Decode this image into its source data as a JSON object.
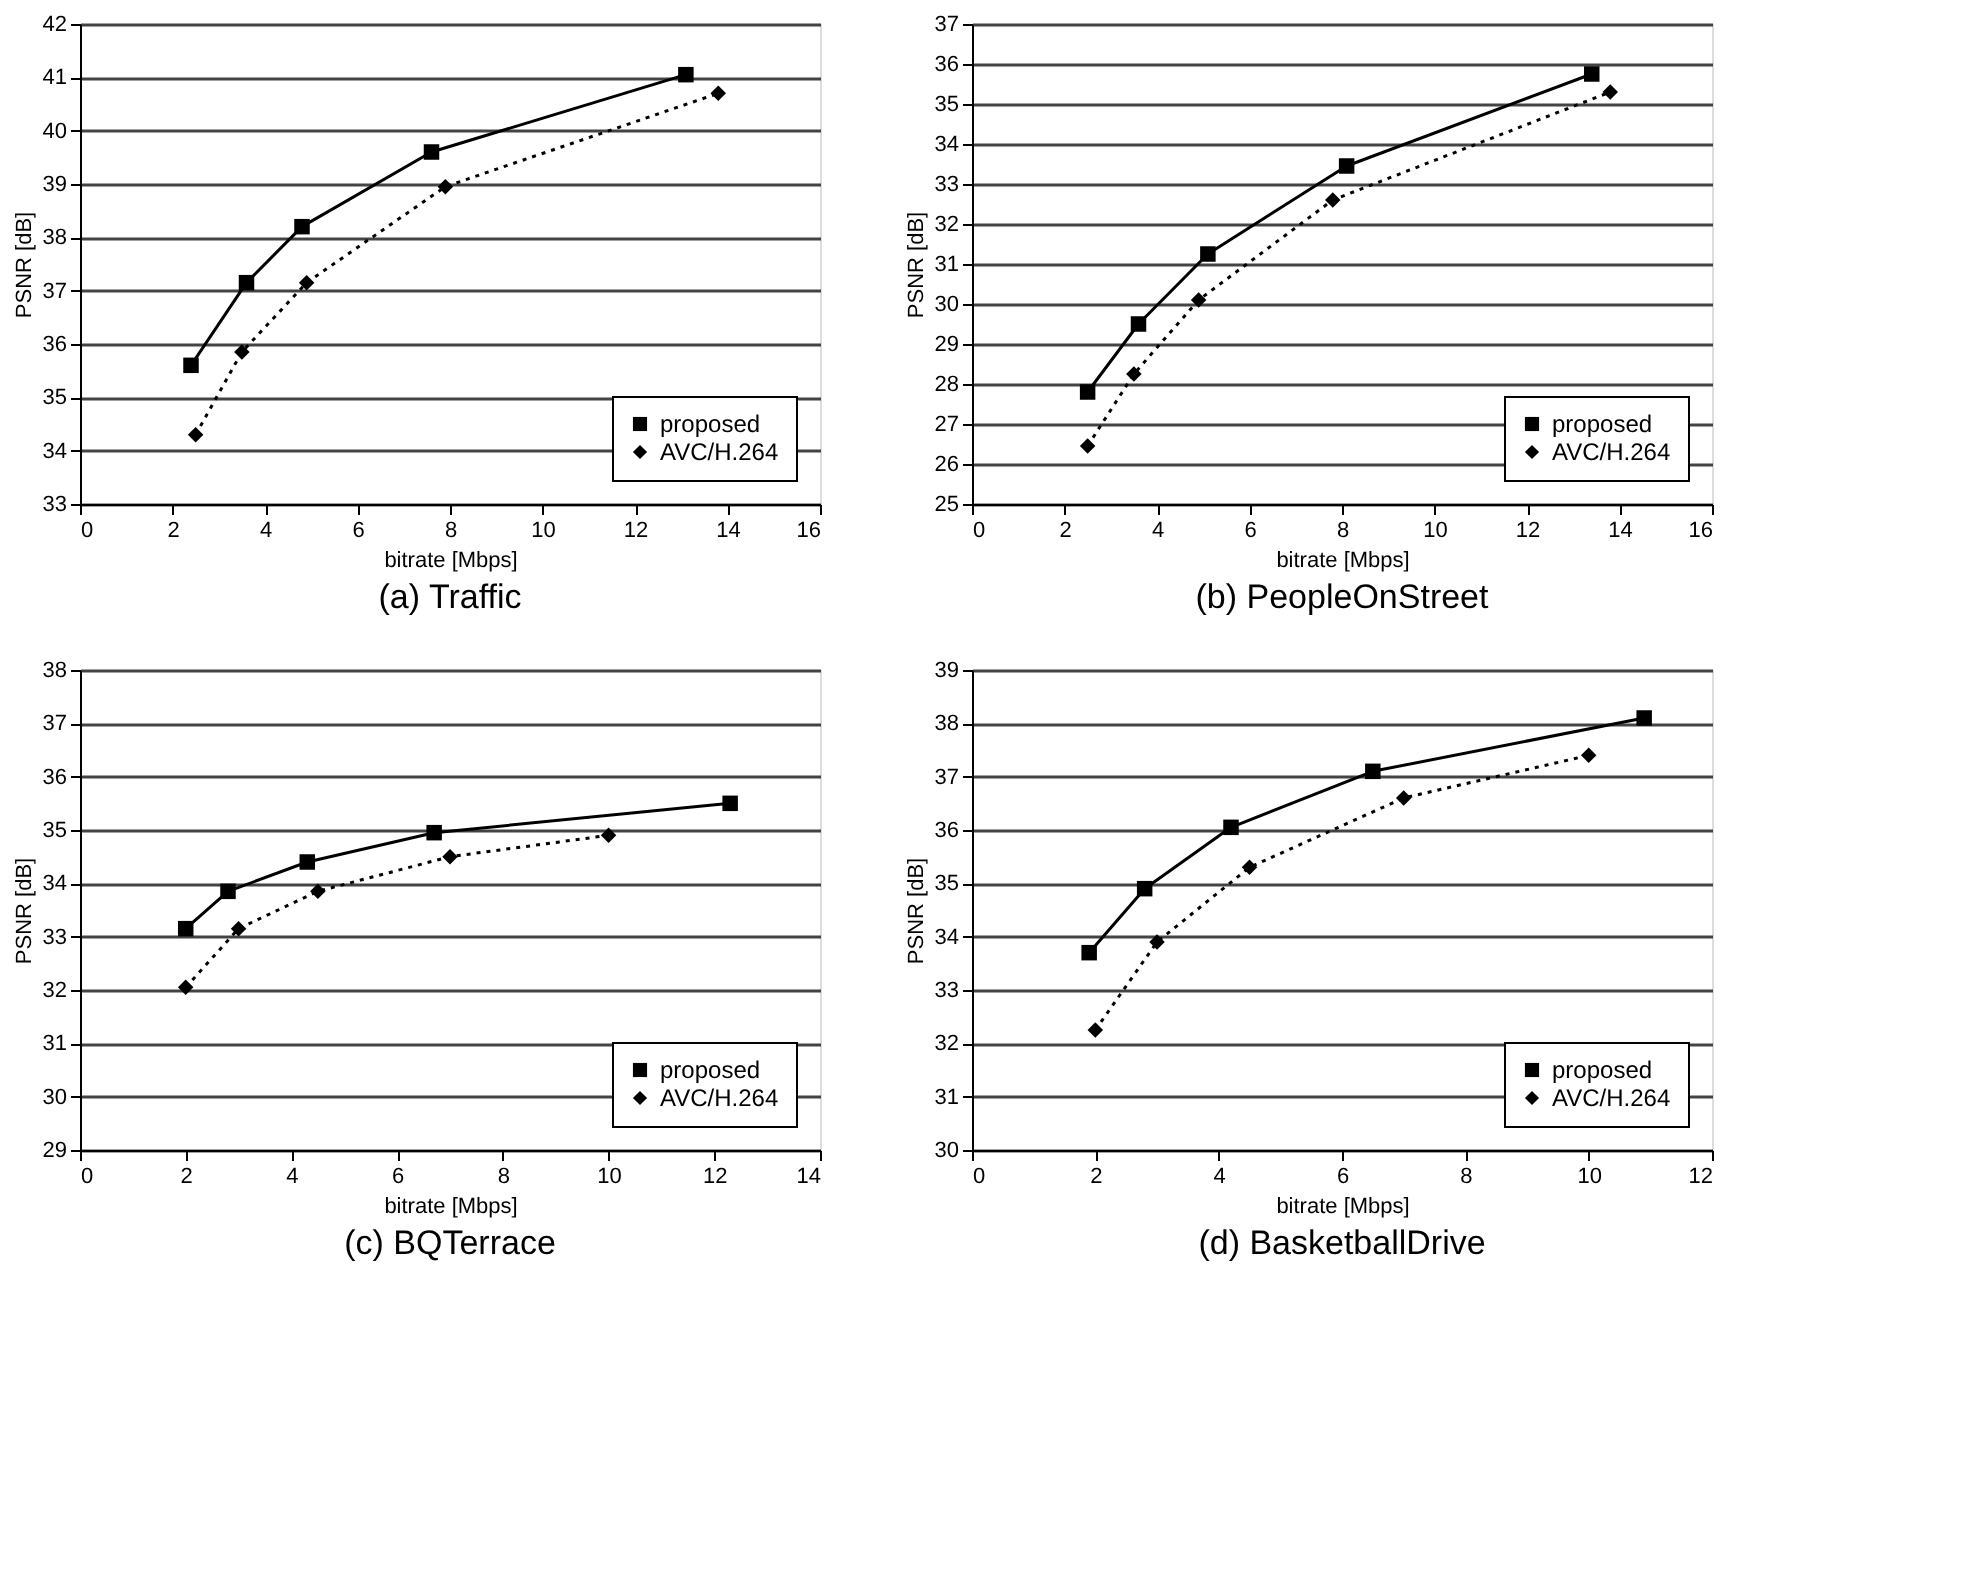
{
  "chart_data": [
    {
      "type": "line",
      "title": "(a) Traffic",
      "xlabel": "bitrate [Mbps]",
      "ylabel": "PSNR [dB]",
      "xlim": [
        0,
        16
      ],
      "xticks": [
        0,
        2,
        4,
        6,
        8,
        10,
        12,
        14,
        16
      ],
      "ylim": [
        33,
        42
      ],
      "yticks": [
        33,
        34,
        35,
        36,
        37,
        38,
        39,
        40,
        41,
        42
      ],
      "grid": "y",
      "legend": "bottom right",
      "series": [
        {
          "name": "proposed",
          "color": "#000000",
          "marker": "square",
          "line_style": "solid",
          "x": [
            2.4,
            3.6,
            4.8,
            7.6,
            13.1
          ],
          "values": [
            35.6,
            37.15,
            38.2,
            39.6,
            41.05
          ]
        },
        {
          "name": "AVC/H.264",
          "color": "#000000",
          "marker": "diamond",
          "line_style": "dotted",
          "x": [
            2.5,
            3.5,
            4.9,
            7.9,
            13.8
          ],
          "values": [
            34.3,
            35.85,
            37.15,
            38.95,
            40.7
          ]
        }
      ]
    },
    {
      "type": "line",
      "title": "(b) PeopleOnStreet",
      "xlabel": "bitrate [Mbps]",
      "ylabel": "PSNR [dB]",
      "xlim": [
        0,
        16
      ],
      "xticks": [
        0,
        2,
        4,
        6,
        8,
        10,
        12,
        14,
        16
      ],
      "ylim": [
        25,
        37
      ],
      "yticks": [
        25,
        26,
        27,
        28,
        29,
        30,
        31,
        32,
        33,
        34,
        35,
        36,
        37
      ],
      "grid": "y",
      "legend": "bottom right",
      "series": [
        {
          "name": "proposed",
          "color": "#000000",
          "marker": "square",
          "line_style": "solid",
          "x": [
            2.5,
            3.6,
            5.1,
            8.1,
            13.4
          ],
          "values": [
            27.8,
            29.5,
            31.25,
            33.45,
            35.75
          ]
        },
        {
          "name": "AVC/H.264",
          "color": "#000000",
          "marker": "diamond",
          "line_style": "dotted",
          "x": [
            2.5,
            3.5,
            4.9,
            7.8,
            13.8
          ],
          "values": [
            26.45,
            28.25,
            30.1,
            32.6,
            35.3
          ]
        }
      ]
    },
    {
      "type": "line",
      "title": "(c) BQTerrace",
      "xlabel": "bitrate [Mbps]",
      "ylabel": "PSNR [dB]",
      "xlim": [
        0,
        14
      ],
      "xticks": [
        0,
        2,
        4,
        6,
        8,
        10,
        12,
        14
      ],
      "ylim": [
        29,
        38
      ],
      "yticks": [
        29,
        30,
        31,
        32,
        33,
        34,
        35,
        36,
        37,
        38
      ],
      "grid": "y",
      "legend": "bottom right",
      "series": [
        {
          "name": "proposed",
          "color": "#000000",
          "marker": "square",
          "line_style": "solid",
          "x": [
            2.0,
            2.8,
            4.3,
            6.7,
            12.3
          ],
          "values": [
            33.15,
            33.85,
            34.4,
            34.95,
            35.5
          ]
        },
        {
          "name": "AVC/H.264",
          "color": "#000000",
          "marker": "diamond",
          "line_style": "dotted",
          "x": [
            2.0,
            3.0,
            4.5,
            7.0,
            10.0
          ],
          "values": [
            32.05,
            33.15,
            33.85,
            34.5,
            34.9
          ]
        }
      ]
    },
    {
      "type": "line",
      "title": "(d) BasketballDrive",
      "xlabel": "bitrate [Mbps]",
      "ylabel": "PSNR [dB]",
      "xlim": [
        0,
        12
      ],
      "xticks": [
        0,
        2,
        4,
        6,
        8,
        10,
        12
      ],
      "ylim": [
        30,
        39
      ],
      "yticks": [
        30,
        31,
        32,
        33,
        34,
        35,
        36,
        37,
        38,
        39
      ],
      "grid": "y",
      "legend": "bottom right",
      "series": [
        {
          "name": "proposed",
          "color": "#000000",
          "marker": "square",
          "line_style": "solid",
          "x": [
            1.9,
            2.8,
            4.2,
            6.5,
            10.9
          ],
          "values": [
            33.7,
            34.9,
            36.05,
            37.1,
            38.1
          ]
        },
        {
          "name": "AVC/H.264",
          "color": "#000000",
          "marker": "diamond",
          "line_style": "dotted",
          "x": [
            2.0,
            3.0,
            4.5,
            7.0,
            10.0
          ],
          "values": [
            32.25,
            33.9,
            35.3,
            36.6,
            37.4
          ]
        }
      ]
    }
  ]
}
